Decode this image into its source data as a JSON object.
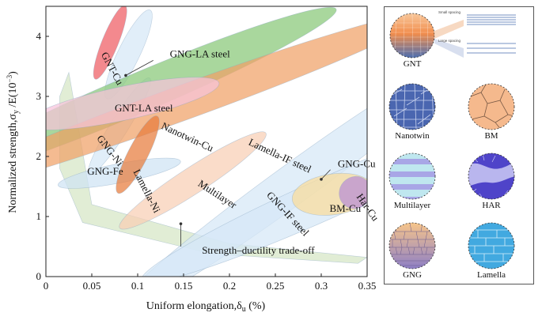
{
  "chart_data": {
    "type": "scatter",
    "title": "",
    "xlabel": "Uniform elongation,",
    "xlabel_symbol": "δ",
    "xlabel_sub": "u",
    "xlabel_unit": " (%)",
    "ylabel": "Normalized strength,",
    "ylabel_symbol": "σ",
    "ylabel_sub": "y",
    "ylabel_unit": " /E(10",
    "ylabel_exp": "−3",
    "ylabel_close": ")",
    "xlim": [
      0,
      0.35
    ],
    "ylim": [
      0,
      4.5
    ],
    "x_ticks": [
      "0",
      "0.05",
      "0.1",
      "0.15",
      "0.2",
      "0.25",
      "0.3",
      "0.35"
    ],
    "y_ticks": [
      "0",
      "1",
      "2",
      "3",
      "4"
    ],
    "regions": [
      {
        "name": "Strength–ductility trade-off",
        "shape": "polygon",
        "color": "#d5e6c5",
        "points": [
          [
            0.025,
            3.4
          ],
          [
            0.05,
            1.2
          ],
          [
            0.2,
            0.55
          ],
          [
            0.35,
            0.32
          ],
          [
            0.34,
            0.22
          ],
          [
            0.18,
            0.38
          ],
          [
            0.04,
            0.9
          ],
          [
            0.015,
            1.8
          ],
          [
            0.015,
            3.0
          ]
        ]
      },
      {
        "name": "GNG-Fe",
        "cx": 0.08,
        "cy": 1.72,
        "rx": 0.068,
        "ry": 0.16,
        "angle": -11,
        "color": "#cfe3f4"
      },
      {
        "name": "GNG-LA steel",
        "cx": 0.09,
        "cy": 3.7,
        "rx": 0.82,
        "ry": 0.18,
        "angle": -64,
        "color": "#d6e8f7"
      },
      {
        "name": "GNG-IF steel",
        "cx": 0.27,
        "cy": 1.55,
        "rx": 0.245,
        "ry": 0.33,
        "angle": -36,
        "color": "#d6e8f7"
      },
      {
        "name": "GNG-Cu",
        "cx": 0.305,
        "cy": 1.3,
        "rx": 0.22,
        "ry": 0.34,
        "angle": -24,
        "color": "#d6e8f7"
      },
      {
        "name": "GNG-Ni",
        "cx": 0.08,
        "cy": 2.5,
        "rx": 0.95,
        "ry": 0.15,
        "angle": -58,
        "color": "#d6e8f7"
      },
      {
        "name": "Nanotwin-Cu",
        "cx": 0.1,
        "cy": 3.05,
        "rx": 0.235,
        "ry": 0.33,
        "angle": -23,
        "color": "#88c877"
      },
      {
        "name": "Lamella-IF steel",
        "cx": 0.15,
        "cy": 2.9,
        "rx": 0.285,
        "ry": 0.29,
        "angle": -20,
        "color": "#f0a166"
      },
      {
        "name": "Multilayer",
        "cx": 0.16,
        "cy": 1.6,
        "rx": 0.095,
        "ry": 0.22,
        "angle": -33,
        "color": "#f8cfb4"
      },
      {
        "name": "Lamella-Ni",
        "cx": 0.1,
        "cy": 2.03,
        "rx": 0.72,
        "ry": 0.165,
        "angle": -63,
        "color": "#e87b3c"
      },
      {
        "name": "GNT-LA steel",
        "cx": 0.083,
        "cy": 2.88,
        "rx": 0.108,
        "ry": 0.28,
        "angle": -12,
        "color": "#f7c3da"
      },
      {
        "name": "GNT-Cu",
        "cx": 0.07,
        "cy": 3.9,
        "rx": 0.66,
        "ry": 0.135,
        "angle": -68,
        "color": "#ee5c62"
      },
      {
        "name": "BM-Cu",
        "cx": 0.313,
        "cy": 1.37,
        "rx": 0.045,
        "ry": 0.34,
        "angle": -8,
        "color": "#f9dc9a"
      },
      {
        "name": "Har-Cu",
        "cx": 0.337,
        "cy": 1.4,
        "rx": 0.018,
        "ry": 0.26,
        "angle": -48,
        "color": "#b98ed6"
      }
    ],
    "region_labels": [
      {
        "text": "GNT-Cu",
        "x": 0.06,
        "y": 3.7,
        "angle": 62
      },
      {
        "text": "GNG-LA steel",
        "x": 0.135,
        "y": 3.65,
        "angle": 0
      },
      {
        "text": "GNT-LA steel",
        "x": 0.075,
        "y": 2.75,
        "angle": 0
      },
      {
        "text": "GNG-Ni",
        "x": 0.055,
        "y": 2.3,
        "angle": 52
      },
      {
        "text": "Nanotwin-Cu",
        "x": 0.125,
        "y": 2.47,
        "angle": 25
      },
      {
        "text": "Lamella-IF steel",
        "x": 0.22,
        "y": 2.2,
        "angle": 25
      },
      {
        "text": "Lamella-Ni",
        "x": 0.095,
        "y": 1.75,
        "angle": 63
      },
      {
        "text": "GNG-Fe",
        "x": 0.045,
        "y": 1.7,
        "angle": 0
      },
      {
        "text": "Multilayer",
        "x": 0.165,
        "y": 1.52,
        "angle": 33
      },
      {
        "text": "GNG-IF steel",
        "x": 0.24,
        "y": 1.35,
        "angle": 47
      },
      {
        "text": "GNG-Cu",
        "x": 0.318,
        "y": 1.82,
        "angle": 0
      },
      {
        "text": "BM-Cu",
        "x": 0.309,
        "y": 1.08,
        "angle": 0
      },
      {
        "text": "Har-Cu",
        "x": 0.338,
        "y": 1.33,
        "angle": 55
      },
      {
        "text": "Strength–ductility trade-off",
        "x": 0.17,
        "y": 0.38,
        "angle": 0
      }
    ],
    "annotation_arrows": [
      {
        "from": [
          0.117,
          3.6
        ],
        "to": [
          0.087,
          3.35
        ]
      },
      {
        "from": [
          0.31,
          1.78
        ],
        "to": [
          0.3,
          1.62
        ]
      },
      {
        "from": [
          0.147,
          0.5
        ],
        "to": [
          0.147,
          0.88
        ]
      }
    ],
    "legend_items": [
      {
        "caption": "GNT",
        "pattern": "gradient-twin",
        "small_spacing": "Small spacing",
        "large_spacing": "Large spacing"
      },
      {
        "caption": "Nanotwin",
        "pattern": "nanotwin"
      },
      {
        "caption": "BM",
        "pattern": "coarse-grain"
      },
      {
        "caption": "Multilayer",
        "pattern": "multilayer"
      },
      {
        "caption": "HAR",
        "pattern": "heterogeneous"
      },
      {
        "caption": "GNG",
        "pattern": "gradient-grain"
      },
      {
        "caption": "Lamella",
        "pattern": "lamella"
      }
    ],
    "legend_colors": {
      "twin_top": "#f28d4c",
      "twin_bottom": "#4d6fb0",
      "nanotwin": "#4a66b0",
      "bm": "#f5b98d",
      "multilayer_a": "#bfe7ef",
      "multilayer_b": "#a8a6e6",
      "har": "#4f44c9",
      "gng_top": "#f7c58a",
      "gng_bottom": "#8d7fc6",
      "lamella": "#42a9e0"
    }
  }
}
